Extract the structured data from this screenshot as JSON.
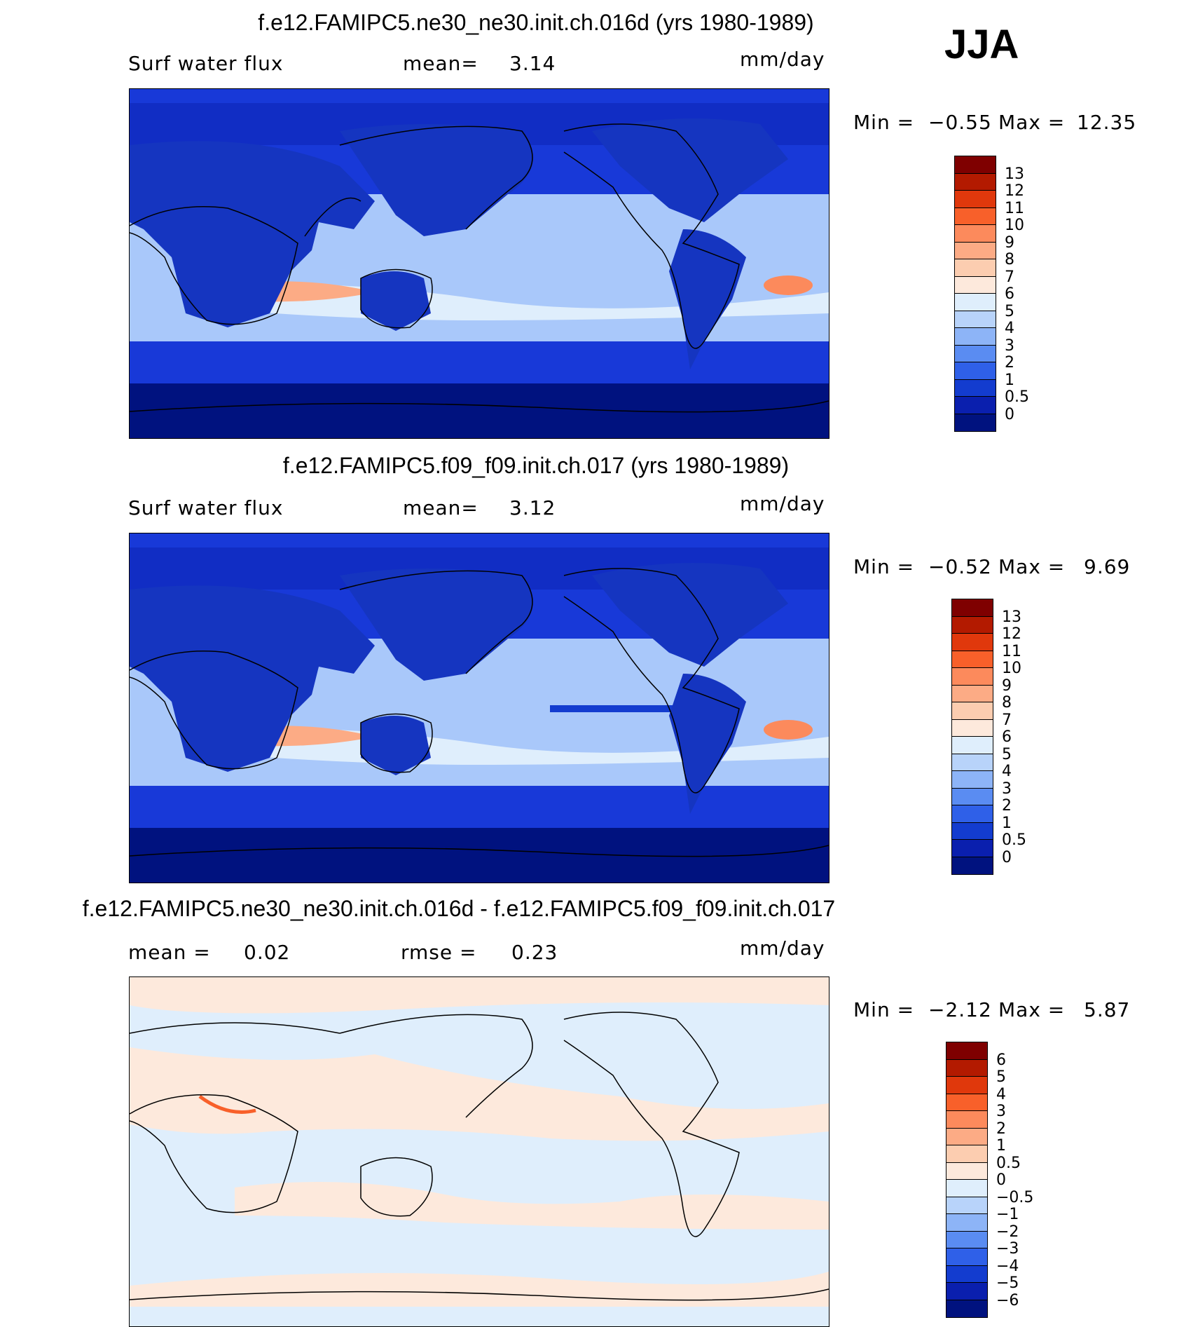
{
  "season": "JJA",
  "panels": [
    {
      "title": "f.e12.FAMIPC5.ne30_ne30.init.ch.016d (yrs 1980-1989)",
      "left_label": "Surf water flux",
      "mid_label": "mean=",
      "mid_value": "3.14",
      "units": "mm/day",
      "min_label": "Min =",
      "min_value": "−0.55",
      "max_label": "Max =",
      "max_value": "12.35",
      "levels": [
        "13",
        "12",
        "11",
        "10",
        "9",
        "8",
        "7",
        "6",
        "5",
        "4",
        "3",
        "2",
        "1",
        "0.5",
        "0"
      ],
      "colors": [
        "#7f0000",
        "#b31a00",
        "#e0380c",
        "#f8602a",
        "#fc8a5c",
        "#fcab85",
        "#fccdb0",
        "#fde9dc",
        "#dfeefc",
        "#b8d3fa",
        "#8db4f7",
        "#5a8cf2",
        "#2f60e8",
        "#133ccf",
        "#0a1fae",
        "#00127f"
      ],
      "map_colors": {
        "ocean_base": "#a9c8fa",
        "high_lat": "#1839d8",
        "polar": "#00127f",
        "land": "#1535c0",
        "itcz": "#fde9dc",
        "hot": "#fc8a5c"
      }
    },
    {
      "title": "f.e12.FAMIPC5.f09_f09.init.ch.017 (yrs 1980-1989)",
      "left_label": "Surf water flux",
      "mid_label": "mean=",
      "mid_value": "3.12",
      "units": "mm/day",
      "min_label": "Min =",
      "min_value": "−0.52",
      "max_label": "Max =",
      "max_value": "9.69",
      "levels": [
        "13",
        "12",
        "11",
        "10",
        "9",
        "8",
        "7",
        "6",
        "5",
        "4",
        "3",
        "2",
        "1",
        "0.5",
        "0"
      ],
      "colors": [
        "#7f0000",
        "#b31a00",
        "#e0380c",
        "#f8602a",
        "#fc8a5c",
        "#fcab85",
        "#fccdb0",
        "#fde9dc",
        "#dfeefc",
        "#b8d3fa",
        "#8db4f7",
        "#5a8cf2",
        "#2f60e8",
        "#133ccf",
        "#0a1fae",
        "#00127f"
      ],
      "map_colors": {
        "ocean_base": "#a9c8fa",
        "high_lat": "#1839d8",
        "polar": "#00127f",
        "land": "#1535c0",
        "itcz": "#fde9dc",
        "hot": "#fc8a5c"
      }
    },
    {
      "title": "f.e12.FAMIPC5.ne30_ne30.init.ch.016d - f.e12.FAMIPC5.f09_f09.init.ch.017",
      "left_label": "mean =",
      "left_value": "0.02",
      "mid_label": "rmse =",
      "mid_value": "0.23",
      "units": "mm/day",
      "min_label": "Min =",
      "min_value": "−2.12",
      "max_label": "Max =",
      "max_value": "5.87",
      "levels": [
        "6",
        "5",
        "4",
        "3",
        "2",
        "1",
        "0.5",
        "0",
        "−0.5",
        "−1",
        "−2",
        "−3",
        "−4",
        "−5",
        "−6"
      ],
      "colors": [
        "#7f0000",
        "#b31a00",
        "#e0380c",
        "#f8602a",
        "#fc8a5c",
        "#fcab85",
        "#fccdb0",
        "#fde9dc",
        "#dfeefc",
        "#b8d3fa",
        "#8db4f7",
        "#5a8cf2",
        "#2f60e8",
        "#133ccf",
        "#0a1fae",
        "#00127f"
      ],
      "map_colors": {
        "ocean_base": "#dfeefc",
        "alt": "#fde9dc",
        "hot": "#f8602a"
      }
    }
  ]
}
